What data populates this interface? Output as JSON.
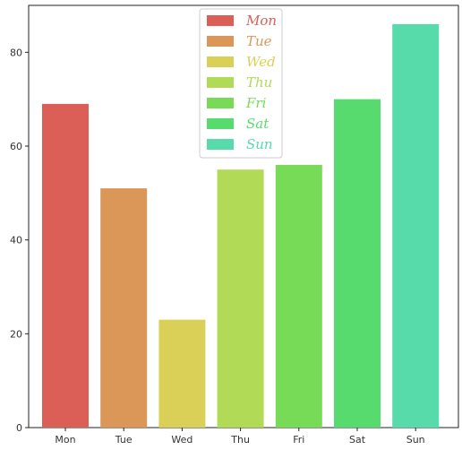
{
  "chart_data": {
    "type": "bar",
    "categories": [
      "Mon",
      "Tue",
      "Wed",
      "Thu",
      "Fri",
      "Sat",
      "Sun"
    ],
    "values": [
      69,
      51,
      23,
      55,
      56,
      70,
      86
    ],
    "colors": [
      "#db5f57",
      "#db9757",
      "#dbd057",
      "#b1db57",
      "#78db57",
      "#57db6f",
      "#57dbab"
    ],
    "ylim": [
      0,
      90
    ],
    "yticks": [
      0,
      20,
      40,
      60,
      80
    ],
    "legend": {
      "placement": "top-center",
      "entries": [
        "Mon",
        "Tue",
        "Wed",
        "Thu",
        "Fri",
        "Sat",
        "Sun"
      ]
    },
    "grid": false
  }
}
